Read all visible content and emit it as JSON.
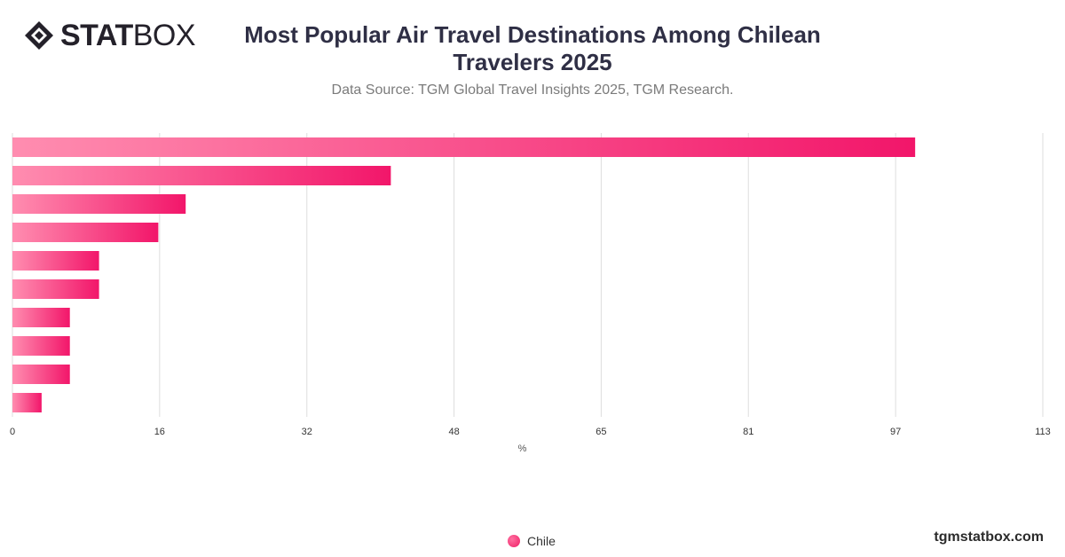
{
  "brand": {
    "logo_bold": "STAT",
    "logo_light": "BOX",
    "watermark": "tgmstatbox.com"
  },
  "header": {
    "title": "Most Popular Air Travel Destinations Among Chilean Travelers 2025",
    "subtitle": "Data Source: TGM Global Travel Insights 2025, TGM Research."
  },
  "colors": {
    "bar_start": "#ff8db0",
    "bar_end": "#f2166a",
    "grid": "#dedede",
    "axis_text": "#333333"
  },
  "chart_data": {
    "type": "bar",
    "orientation": "horizontal",
    "categories": [
      "",
      "",
      "",
      "",
      "",
      "",
      "",
      "",
      "",
      ""
    ],
    "series": [
      {
        "name": "Chile",
        "values": [
          99,
          41.5,
          19,
          16,
          9.5,
          9.5,
          6.3,
          6.3,
          6.3,
          3.2
        ]
      }
    ],
    "xlabel": "%",
    "ylabel": "",
    "xlim": [
      0,
      113
    ],
    "ticks": [
      "0",
      "16",
      "32",
      "48",
      "65",
      "81",
      "97",
      "113"
    ],
    "tick_values": [
      0,
      16.14,
      32.29,
      48.43,
      64.57,
      80.71,
      96.86,
      113
    ],
    "grid": true,
    "legend": "bottom-center"
  }
}
